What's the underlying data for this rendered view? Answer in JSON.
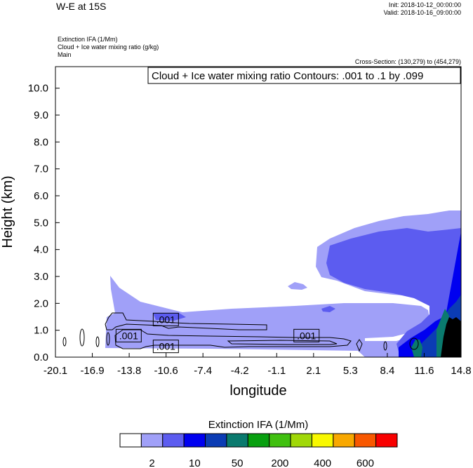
{
  "header": {
    "title": "W-E at 15S",
    "init": "Init: 2018-10-12_00:00:00",
    "valid": "Valid: 2018-10-16_09:00:00",
    "fields": [
      "Extinction IFA   (1/Mm)",
      "Cloud + Ice water mixing ratio   (g/kg)",
      "Main"
    ],
    "cross_section": "Cross-Section: (130,279) to (454,279)"
  },
  "chart_data": {
    "type": "contour",
    "contour_info": "Cloud + Ice water mixing ratio Contours: .001 to .1 by .099",
    "xlabel": "longitude",
    "ylabel": "Height (km)",
    "xlim": [
      -20.1,
      14.8
    ],
    "ylim": [
      0.0,
      10.8
    ],
    "x_ticks": [
      "-20.1",
      "-16.9",
      "-13.8",
      "-10.6",
      "-7.4",
      "-4.2",
      "-1.1",
      "2.1",
      "5.3",
      "8.4",
      "11.6",
      "14.8"
    ],
    "y_ticks": [
      "0.0",
      "1.0",
      "2.0",
      "3.0",
      "4.0",
      "5.0",
      "6.0",
      "7.0",
      "8.0",
      "9.0",
      "10.0"
    ],
    "contour_labels": [
      {
        "text": ".001",
        "x": -10.6,
        "y": 1.4
      },
      {
        "text": ".001",
        "x": -13.8,
        "y": 0.8
      },
      {
        "text": ".001",
        "x": -10.6,
        "y": 0.4
      },
      {
        "text": ".001",
        "x": 1.5,
        "y": 0.8
      }
    ],
    "colorbar": {
      "title": "Extinction IFA  (1/Mm)",
      "colors": [
        "#ffffff",
        "#a0a0f8",
        "#5c5cf0",
        "#0000f0",
        "#0b3cb4",
        "#0a7a6e",
        "#08a010",
        "#40c010",
        "#a0d808",
        "#f8f800",
        "#f8a800",
        "#f85800",
        "#f80000"
      ],
      "tick_labels": [
        "2",
        "10",
        "50",
        "200",
        "400",
        "600"
      ]
    }
  }
}
